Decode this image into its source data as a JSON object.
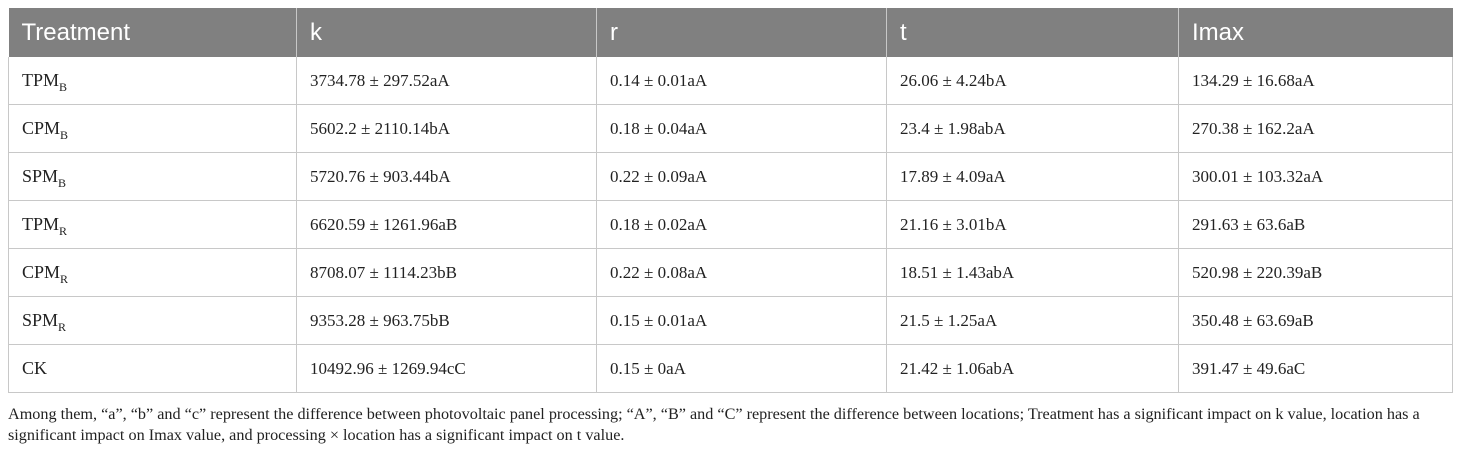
{
  "table": {
    "headers": [
      "Treatment",
      "k",
      "r",
      "t",
      "Imax"
    ],
    "rows": [
      {
        "treatment": "TPM",
        "sub": "B",
        "k": "3734.78 ± 297.52aA",
        "r": "0.14 ± 0.01aA",
        "t": "26.06 ± 4.24bA",
        "imax": "134.29 ± 16.68aA"
      },
      {
        "treatment": "CPM",
        "sub": "B",
        "k": "5602.2 ± 2110.14bA",
        "r": "0.18 ± 0.04aA",
        "t": "23.4 ± 1.98abA",
        "imax": "270.38 ± 162.2aA"
      },
      {
        "treatment": "SPM",
        "sub": "B",
        "k": "5720.76 ± 903.44bA",
        "r": "0.22 ± 0.09aA",
        "t": "17.89 ± 4.09aA",
        "imax": "300.01 ± 103.32aA"
      },
      {
        "treatment": "TPM",
        "sub": "R",
        "k": "6620.59 ± 1261.96aB",
        "r": "0.18 ± 0.02aA",
        "t": "21.16 ± 3.01bA",
        "imax": "291.63 ± 63.6aB"
      },
      {
        "treatment": "CPM",
        "sub": "R",
        "k": "8708.07 ± 1114.23bB",
        "r": "0.22 ± 0.08aA",
        "t": "18.51 ± 1.43abA",
        "imax": "520.98 ± 220.39aB"
      },
      {
        "treatment": "SPM",
        "sub": "R",
        "k": "9353.28 ± 963.75bB",
        "r": "0.15 ± 0.01aA",
        "t": "21.5 ± 1.25aA",
        "imax": "350.48 ± 63.69aB"
      },
      {
        "treatment": "CK",
        "sub": "",
        "k": "10492.96 ± 1269.94cC",
        "r": "0.15 ± 0aA",
        "t": "21.42 ± 1.06abA",
        "imax": "391.47 ± 49.6aC"
      }
    ]
  },
  "footnote": "Among them, “a”, “b” and “c” represent the difference between photovoltaic panel processing; “A”, “B” and “C” represent the difference between locations; Treatment has a significant impact on k value, location has a significant impact on Imax value, and processing × location has a significant impact on t value."
}
